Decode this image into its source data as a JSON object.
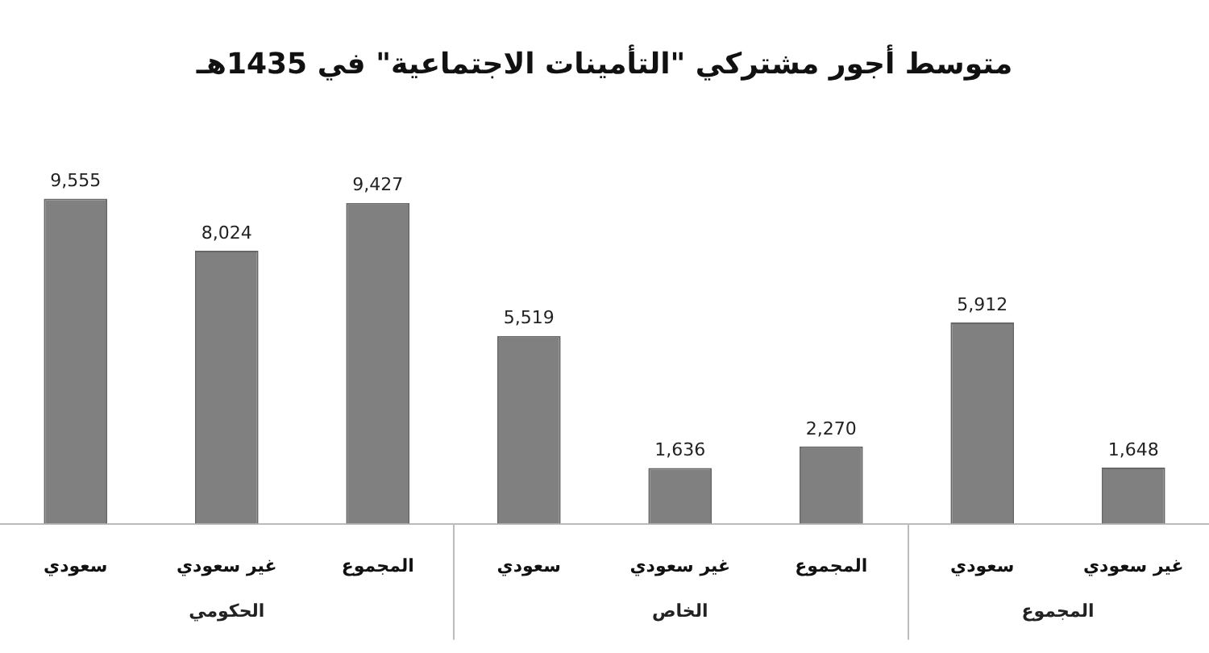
{
  "chart_data": {
    "type": "bar",
    "title": "متوسط أجور مشتركي \"التأمينات الاجتماعية\" في 1435هـ",
    "categories": [
      "سعودي",
      "غير سعودي",
      "المجموع",
      "سعودي",
      "غير سعودي",
      "المجموع",
      "سعودي",
      "غير سعودي"
    ],
    "values": [
      9555,
      8024,
      9427,
      5519,
      1636,
      2270,
      5912,
      1648
    ],
    "value_labels": [
      "9,555",
      "8,024",
      "9,427",
      "5,519",
      "1,636",
      "2,270",
      "5,912",
      "1,648"
    ],
    "color": "#808080",
    "legend": false,
    "annotations": [
      "الحكومي",
      "الخاص",
      "المجموع"
    ]
  }
}
